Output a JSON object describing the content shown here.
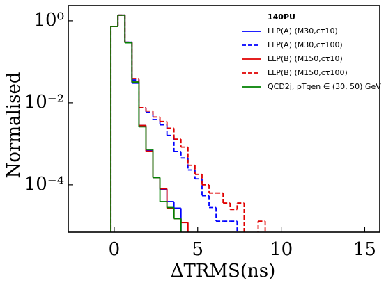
{
  "chart_data": {
    "type": "step_histogram",
    "xlabel": "ΔTRMS(ns)",
    "ylabel": "Normalised",
    "legend_title": "140PU",
    "legend": "upper right",
    "log_y": true,
    "xlim": [
      -2.75,
      15.9
    ],
    "ylim": [
      7e-06,
      2.35
    ],
    "xticks": [
      0,
      5,
      10,
      15
    ],
    "yticks": [
      {
        "value": 1,
        "label": "10⁰"
      },
      {
        "value": 0.01,
        "label": "10⁻²"
      },
      {
        "value": 0.0001,
        "label": "10⁻⁴"
      }
    ],
    "bins": [
      -0.2,
      0.22,
      0.64,
      1.06,
      1.48,
      1.9,
      2.32,
      2.74,
      3.16,
      3.58,
      4.0,
      4.42,
      4.84,
      5.26,
      5.68,
      6.1,
      6.52,
      6.94,
      7.36,
      7.78,
      8.2,
      8.62,
      9.04
    ],
    "series": [
      {
        "name": "LLP(A) (M30,cτ10)",
        "color": "#0000ff",
        "dashed": false,
        "values": [
          0.73,
          1.37,
          0.3,
          0.03,
          0.0028,
          0.00068,
          0.00015,
          7.7e-05,
          3.9e-05,
          2.7e-05,
          0,
          0,
          0,
          0,
          0,
          0,
          0,
          0,
          0,
          0,
          0,
          0
        ]
      },
      {
        "name": "LLP(A) (M30,cτ100)",
        "color": "#0000ff",
        "dashed": true,
        "values": [
          0.73,
          1.37,
          0.3,
          0.036,
          0.0076,
          0.0058,
          0.0039,
          0.0029,
          0.0016,
          0.00065,
          0.00045,
          0.00023,
          0.00014,
          5.4e-05,
          2.8e-05,
          1.3e-05,
          1.3e-05,
          1.3e-05,
          0,
          0,
          0,
          0
        ]
      },
      {
        "name": "LLP(B) (M150,cτ10)",
        "color": "#e00000",
        "dashed": false,
        "values": [
          0.73,
          1.37,
          0.29,
          0.032,
          0.0028,
          0.00066,
          0.00015,
          8e-05,
          2.7e-05,
          1.5e-05,
          1.2e-05,
          0,
          0,
          0,
          0,
          0,
          0,
          0,
          0,
          0,
          0,
          0
        ]
      },
      {
        "name": "LLP(B) (M150,cτ100)",
        "color": "#e00000",
        "dashed": true,
        "values": [
          0.73,
          1.37,
          0.3,
          0.039,
          0.0076,
          0.0063,
          0.0045,
          0.0035,
          0.0024,
          0.0013,
          0.00083,
          0.0003,
          0.00018,
          0.0001,
          6.3e-05,
          6.3e-05,
          3.6e-05,
          2.5e-05,
          3.6e-05,
          0,
          0,
          1.3e-05
        ]
      },
      {
        "name": "QCD2j, pTgen ∈ (30, 50) GeV",
        "color": "#008000",
        "dashed": false,
        "values": [
          0.73,
          1.37,
          0.29,
          0.032,
          0.0026,
          0.00073,
          0.00015,
          3.9e-05,
          2.8e-05,
          1.5e-05,
          0,
          0,
          0,
          0,
          0,
          0,
          0,
          0,
          0,
          0,
          0,
          0
        ]
      }
    ]
  }
}
